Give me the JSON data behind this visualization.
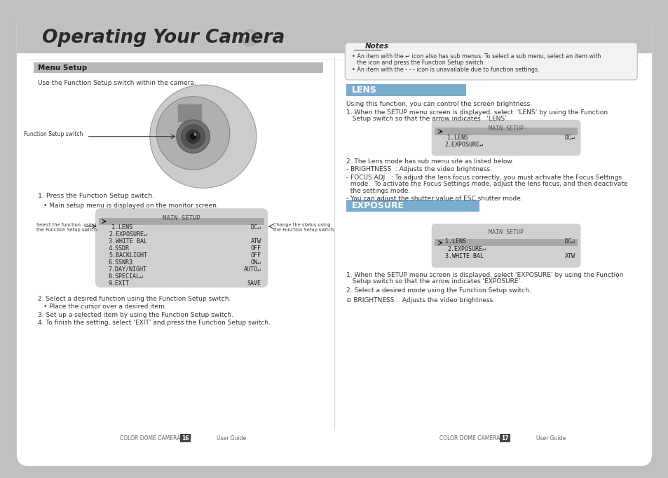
{
  "bg_color": "#c0c0c0",
  "page_bg": "#ffffff",
  "title_text": "Operating Your Camera",
  "left_section": {
    "menu_setup_title": "Menu Setup",
    "menu_setup_desc": "Use the Function Setup switch within the camera.",
    "function_switch_label": "Function Setup switch",
    "step1": "1. Press the Function Setup switch.",
    "step1_bullet": "• Main setup menu is displayed on the monitor screen.",
    "main_setup_title": "MAIN SETUP",
    "menu_items": [
      [
        "1.LENS",
        "DC↵"
      ],
      [
        "2.EXPOSURE↵",
        ""
      ],
      [
        "3.WHITE BAL",
        "ATW"
      ],
      [
        "4.SSDR",
        "OFF"
      ],
      [
        "5.BACKLIGHT",
        "OFF"
      ],
      [
        "6.SSNR3",
        "ON↵"
      ],
      [
        "7.DAY/NIGHT",
        "AUTO↵"
      ],
      [
        "8.SPECIAL↵",
        ""
      ],
      [
        "9.EXIT",
        "SAVE"
      ]
    ],
    "left_label": "Select the function  using\nthe Function Setup switch.",
    "right_label": "Change the status using\nthe Function Setup switch.",
    "step2": "2. Select a desired function using the Function Setup switch.",
    "step2_bullet": "• Place the cursor over a desired item.",
    "step3": "3. Set up a selected item by using the Function Setup switch.",
    "step4": "4. To finish the setting, select ‘EXIT’ and press the Function Setup switch."
  },
  "right_section": {
    "notes_title": "Notes",
    "note1": "• An item with the ↵ icon also has sub menus. To select a sub menu, select an item with",
    "note1b": "   the icon and press the Function Setup switch.",
    "note2": "• An item with the - - - icon is unavailable due to function settings.",
    "lens_title": "LENS",
    "lens_desc": "Using this function, you can control the screen brightness.",
    "lens_step1a": "1. When the SETUP menu screen is displayed, select  ‘LENS’ by using the Function",
    "lens_step1b": "   Setup switch so that the arrow indicates   ‘LENS’.",
    "lens_menu": [
      [
        "1.LENS",
        "DC↵"
      ],
      [
        "2.EXPOSURE↵",
        ""
      ]
    ],
    "lens_selected": 0,
    "lens_step2": "2. The Lens mode has sub menu site as listed below.",
    "lens_brightness": "- BRIGHTNESS  : Adjusts the video brightness.",
    "lens_focus1": "- FOCUS ADJ   : To adjust the lens focus correctly, you must activate the Focus Settings",
    "lens_focus2": "  mode.  To activate the Focus Settings mode, adjust the lens focus, and then deactivate",
    "lens_focus3": "  the settings mode.",
    "lens_shutter": "- You can adjust the shutter value of ESC shutter mode.",
    "exposure_title": "EXPOSURE",
    "exposure_menu": [
      [
        "1.LENS",
        "DC↵"
      ],
      [
        "2.EXPOSURE↵",
        ""
      ],
      [
        "3.WHITE BAL",
        "ATW"
      ]
    ],
    "exposure_selected": 1,
    "exposure_step1a": "1. When the SETUP menu screen is displayed, select ‘EXPOSURE’ by using the Function",
    "exposure_step1b": "   Setup switch so that the arrow indicates ‘EXPOSURE’.",
    "exposure_step2": "2. Select a desired mode using the Function Setup switch.",
    "exposure_step2b": "⊙ BRIGHTNESS :  Adjusts the video brightness."
  },
  "footer_left": "COLOR DOME CAMERA",
  "footer_left_num": "16",
  "footer_left_guide": "User Guide",
  "footer_right": "COLOR DOME CAMERA",
  "footer_right_num": "17",
  "footer_right_guide": "User Guide"
}
